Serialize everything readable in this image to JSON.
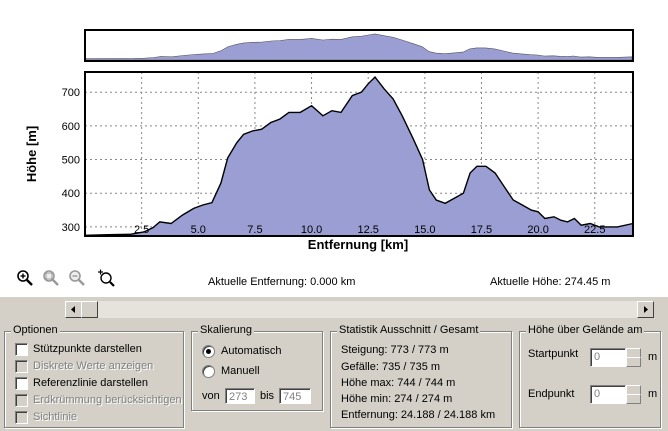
{
  "chart_data": {
    "type": "area",
    "ylabel": "Höhe [m]",
    "xlabel": "Entfernung [km]",
    "x_ticks": [
      "2.5",
      "5.0",
      "7.5",
      "10.0",
      "12.5",
      "15.0",
      "17.5",
      "20.0",
      "22.5"
    ],
    "y_ticks": [
      "300",
      "400",
      "500",
      "600",
      "700"
    ],
    "xlim": [
      0,
      24.188
    ],
    "ylim": [
      273,
      760
    ],
    "grid": true,
    "fill_color": "#9a9ed2",
    "line_color": "#000000",
    "x": [
      0,
      1,
      2,
      2.6,
      3.0,
      3.3,
      3.8,
      4.3,
      4.8,
      5.2,
      5.6,
      6.0,
      6.3,
      6.7,
      7.0,
      7.4,
      7.8,
      8.2,
      8.6,
      9.0,
      9.5,
      10.0,
      10.5,
      10.9,
      11.3,
      11.8,
      12.2,
      12.5,
      12.8,
      13.2,
      13.6,
      14.0,
      14.5,
      14.9,
      15.2,
      15.5,
      15.9,
      16.3,
      16.7,
      17.0,
      17.3,
      17.7,
      18.1,
      18.5,
      18.9,
      19.3,
      19.7,
      20.0,
      20.3,
      20.7,
      21.0,
      21.3,
      21.6,
      21.9,
      22.3,
      22.7,
      23.1,
      23.5,
      24.188
    ],
    "y": [
      275,
      277,
      278,
      285,
      298,
      315,
      310,
      335,
      355,
      365,
      372,
      430,
      505,
      550,
      575,
      585,
      590,
      610,
      620,
      640,
      640,
      660,
      630,
      645,
      640,
      690,
      700,
      725,
      745,
      710,
      680,
      630,
      560,
      500,
      410,
      380,
      370,
      385,
      400,
      460,
      480,
      480,
      460,
      420,
      380,
      365,
      350,
      345,
      325,
      330,
      320,
      315,
      325,
      305,
      310,
      300,
      300,
      300,
      310
    ]
  },
  "overview_color": "#9a9ed2",
  "toolbar": {
    "icons": [
      "zoom-in-icon",
      "zoom-range-icon",
      "zoom-out-icon",
      "zoom-reset-icon"
    ]
  },
  "status": {
    "distance": "Aktuelle Entfernung: 0.000 km",
    "height": "Aktuelle Höhe: 274.45 m"
  },
  "options": {
    "title": "Optionen",
    "items": [
      {
        "label": "Stützpunkte darstellen",
        "enabled": true
      },
      {
        "label": "Diskrete Werte anzeigen",
        "enabled": false
      },
      {
        "label": "Referenzlinie darstellen",
        "enabled": true
      },
      {
        "label": "Erdkrümmung berücksichtigen",
        "enabled": false
      },
      {
        "label": "Sichtlinie",
        "enabled": false
      }
    ]
  },
  "scaling": {
    "title": "Skalierung",
    "auto": "Automatisch",
    "manual": "Manuell",
    "from_label": "von",
    "to_label": "bis",
    "from_value": "273",
    "to_value": "745"
  },
  "statistics": {
    "title": "Statistik  Ausschnitt / Gesamt",
    "lines": [
      "Steigung: 773 / 773 m",
      "Gefälle: 735 / 735 m",
      "Höhe max: 744 / 744 m",
      "Höhe min: 274 / 274 m",
      "Entfernung: 24.188 / 24.188 km"
    ]
  },
  "terrain": {
    "title": "Höhe über Gelände am",
    "start_label": "Startpunkt",
    "start_value": "0",
    "end_label": "Endpunkt",
    "end_value": "0",
    "unit": "m"
  }
}
